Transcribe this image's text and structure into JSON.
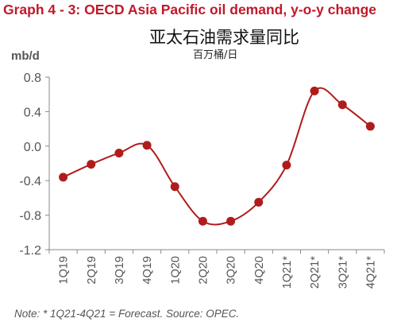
{
  "header": {
    "title_en": "Graph 4 - 3: OECD Asia Pacific oil demand, y-o-y change",
    "title_zh": "亚太石油需求量同比",
    "subtitle_zh": "百万桶/日",
    "unit": "mb/d"
  },
  "footer": {
    "note": "Note: * 1Q21-4Q21 = Forecast. Source: OPEC."
  },
  "colors": {
    "title": "#c0192a",
    "series": "#b01c1c",
    "axis_text": "#555555"
  },
  "chart_data": {
    "type": "line",
    "title": "Graph 4 - 3: OECD Asia Pacific oil demand, y-o-y change",
    "xlabel": "",
    "ylabel": "mb/d",
    "categories": [
      "1Q19",
      "2Q19",
      "3Q19",
      "4Q19",
      "1Q20",
      "2Q20",
      "3Q20",
      "4Q20",
      "1Q21*",
      "2Q21*",
      "3Q21*",
      "4Q21*"
    ],
    "series": [
      {
        "values": [
          -0.36,
          -0.21,
          -0.08,
          0.01,
          -0.47,
          -0.87,
          -0.87,
          -0.65,
          -0.22,
          0.64,
          0.48,
          0.23
        ]
      }
    ],
    "ylim": [
      -1.2,
      0.8
    ],
    "yticks": [
      0.8,
      0.4,
      0.0,
      -0.4,
      -0.8,
      -1.2
    ],
    "ytick_labels": [
      "0.8",
      "0.4",
      "0.0",
      "-0.4",
      "-0.8",
      "-1.2"
    ],
    "smooth": true,
    "markers": true,
    "grid": false,
    "legend": "none"
  }
}
